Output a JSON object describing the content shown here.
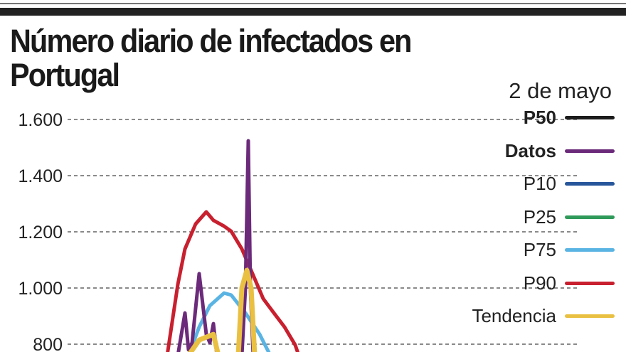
{
  "title": "Número diario de infectados en Portugal",
  "date": "2 de mayo",
  "chart_data": {
    "type": "line",
    "title": "Número diario de infectados en Portugal",
    "subtitle": "2 de mayo",
    "ylim": [
      750,
      1620
    ],
    "yticks": [
      {
        "v": 1600,
        "label": "1.600"
      },
      {
        "v": 1400,
        "label": "1.400"
      },
      {
        "v": 1200,
        "label": "1.200"
      },
      {
        "v": 1000,
        "label": "1.000"
      },
      {
        "v": 800,
        "label": "800"
      }
    ],
    "grid": true,
    "legend_position": "right",
    "legend": [
      {
        "name": "P50",
        "color": "#1c1c1c",
        "bold": true
      },
      {
        "name": "Datos",
        "color": "#6b2a7a",
        "bold": true
      },
      {
        "name": "P10",
        "color": "#27569b",
        "bold": false
      },
      {
        "name": "P25",
        "color": "#2f9a5a",
        "bold": false
      },
      {
        "name": "P75",
        "color": "#5ab4e3",
        "bold": false
      },
      {
        "name": "P90",
        "color": "#c8202f",
        "bold": false
      },
      {
        "name": "Tendencia",
        "color": "#eac043",
        "bold": false
      }
    ],
    "series": [
      {
        "name": "P90",
        "color": "#c8202f",
        "segments": [
          {
            "x": [
              28,
              31,
              33,
              36,
              39,
              41,
              44,
              46,
              49,
              52,
              55,
              58,
              61,
              64,
              65
            ],
            "y": [
              760,
              1013,
              1139,
              1228,
              1271,
              1241,
              1220,
              1202,
              1139,
              1051,
              962,
              911,
              861,
              797,
              760
            ]
          }
        ]
      },
      {
        "name": "P75",
        "color": "#5ab4e3",
        "segments": [
          {
            "x": [
              34,
              37,
              40,
              44,
              46,
              50,
              54,
              57
            ],
            "y": [
              760,
              861,
              937,
              982,
              975,
              911,
              835,
              760
            ]
          }
        ]
      },
      {
        "name": "Datos",
        "color": "#6b2a7a",
        "segments": [
          {
            "x": [
              31,
              33,
              34,
              35,
              37,
              39,
              40,
              41,
              42,
              49,
              50,
              50.8,
              51.4,
              52.2
            ],
            "y": [
              760,
              911,
              780,
              805,
              1051,
              835,
              805,
              873,
              760,
              760,
              1000,
              1524,
              1000,
              760
            ]
          }
        ]
      },
      {
        "name": "Tendencia",
        "color": "#eac043",
        "segments": [
          {
            "x": [
              34,
              37,
              41,
              42.4
            ],
            "y": [
              760,
              815,
              835,
              760
            ]
          },
          {
            "x": [
              48,
              49,
              50.4,
              51.6,
              52.6
            ],
            "y": [
              760,
              1000,
              1063,
              1000,
              760
            ]
          }
        ]
      }
    ]
  }
}
